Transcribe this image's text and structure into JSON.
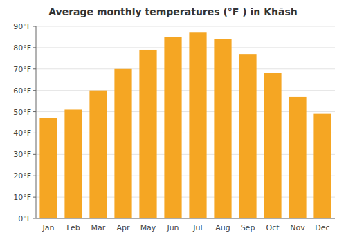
{
  "chart_data": {
    "type": "bar",
    "title": "Average monthly temperatures (°F ) in Khāsh",
    "categories": [
      "Jan",
      "Feb",
      "Mar",
      "Apr",
      "May",
      "Jun",
      "Jul",
      "Aug",
      "Sep",
      "Oct",
      "Nov",
      "Dec"
    ],
    "values": [
      47,
      51,
      60,
      70,
      79,
      85,
      87,
      84,
      77,
      68,
      57,
      49
    ],
    "color": "#F5A623",
    "ylim": [
      0,
      90
    ],
    "yticks": [
      {
        "value": 0,
        "label": "0°F"
      },
      {
        "value": 10,
        "label": "10°F"
      },
      {
        "value": 20,
        "label": "20°F"
      },
      {
        "value": 30,
        "label": "30°F"
      },
      {
        "value": 40,
        "label": "40°F"
      },
      {
        "value": 50,
        "label": "50°F"
      },
      {
        "value": 60,
        "label": "60°F"
      },
      {
        "value": 70,
        "label": "70°F"
      },
      {
        "value": 80,
        "label": "80°F"
      },
      {
        "value": 90,
        "label": "90°F"
      }
    ],
    "grid": true
  }
}
